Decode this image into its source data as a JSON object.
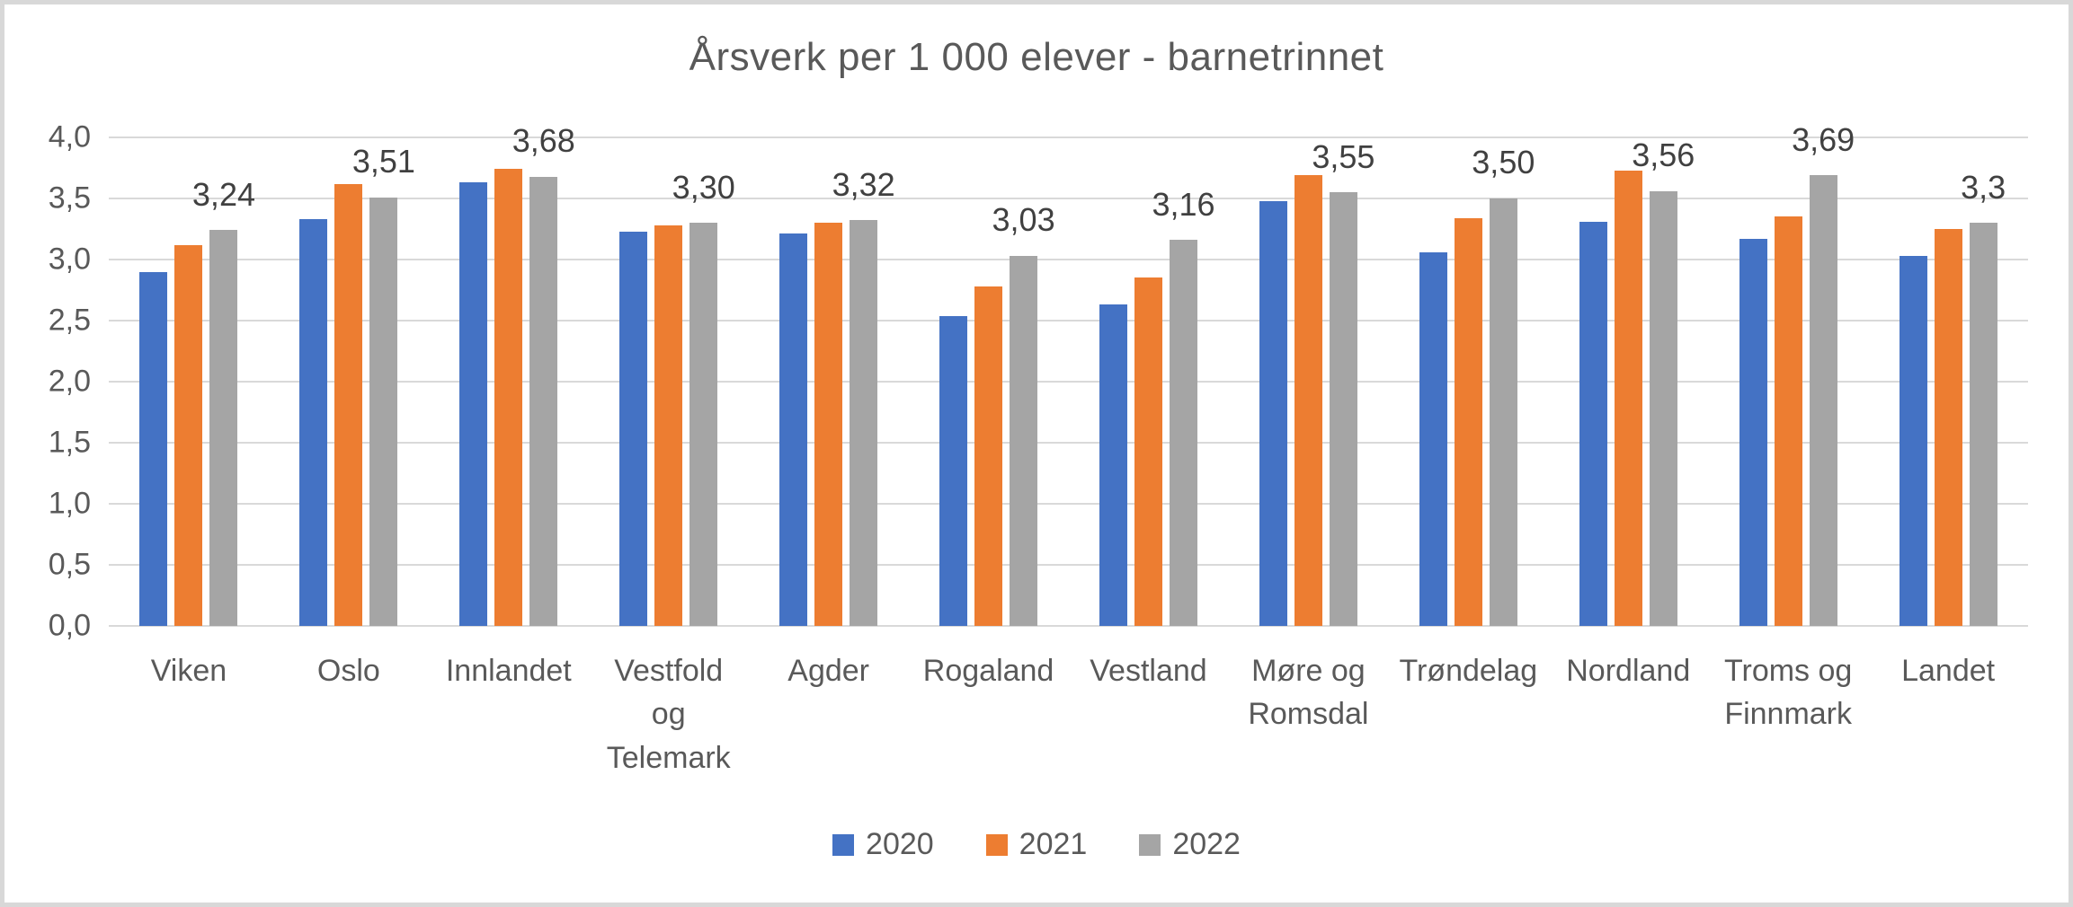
{
  "chart_data": {
    "type": "bar",
    "title": "Årsverk per 1 000 elever - barnetrinnet",
    "categories": [
      "Viken",
      "Oslo",
      "Innlandet",
      "Vestfold og Telemark",
      "Agder",
      "Rogaland",
      "Vestland",
      "Møre og Romsdal",
      "Trøndelag",
      "Nordland",
      "Troms og Finnmark",
      "Landet"
    ],
    "series": [
      {
        "name": "2020",
        "color": "#4472C4",
        "values": [
          2.9,
          3.33,
          3.63,
          3.23,
          3.21,
          2.54,
          2.63,
          3.48,
          3.06,
          3.31,
          3.17,
          3.03
        ]
      },
      {
        "name": "2021",
        "color": "#ED7D31",
        "values": [
          3.12,
          3.62,
          3.74,
          3.28,
          3.3,
          2.78,
          2.85,
          3.69,
          3.34,
          3.73,
          3.35,
          3.25
        ]
      },
      {
        "name": "2022",
        "color": "#A5A5A5",
        "values": [
          3.24,
          3.51,
          3.68,
          3.3,
          3.32,
          3.03,
          3.16,
          3.55,
          3.5,
          3.56,
          3.69,
          3.3
        ],
        "data_labels": [
          "3,24",
          "3,51",
          "3,68",
          "3,30",
          "3,32",
          "3,03",
          "3,16",
          "3,55",
          "3,50",
          "3,56",
          "3,69",
          "3,3"
        ]
      }
    ],
    "ylim": [
      0,
      4
    ],
    "ytick_step": 0.5,
    "yticks": [
      "4,0",
      "3,5",
      "3,0",
      "2,5",
      "2,0",
      "1,5",
      "1,0",
      "0,5",
      "0,0"
    ],
    "grid": "horizontal",
    "legend_position": "bottom"
  },
  "colors": {
    "background": "#FFFFFF",
    "frame_border": "#D8D8D8",
    "gridline": "#D9D9D9",
    "axis_text": "#595959",
    "title_text": "#595959",
    "data_label_text": "#404040"
  }
}
